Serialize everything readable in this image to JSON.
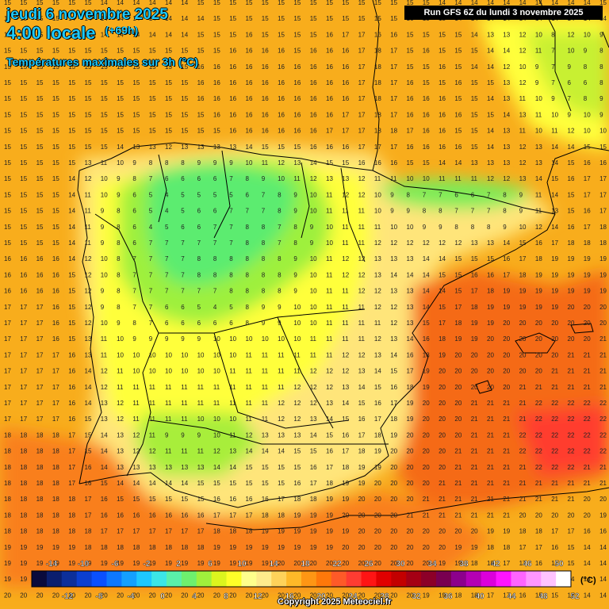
{
  "header": {
    "date": "jeudi 6 novembre 2025",
    "local_time": "4:00 locale",
    "lead_time": "(+69h)",
    "parameter": "Températures maximales sur 3h (°C)",
    "run": "Run GFS 6Z du lundi 3 novembre 2025"
  },
  "legend": {
    "unit": "(°C)",
    "top_labels": [
      "-14",
      "-10",
      "-6",
      "-2",
      "2",
      "6",
      "10",
      "14",
      "18",
      "22",
      "26",
      "30",
      "34",
      "38",
      "42",
      "46",
      "50"
    ],
    "bottom_labels": [
      "-12",
      "-8",
      "-4",
      "0",
      "4",
      "8",
      "12",
      "16",
      "20",
      "24",
      "28",
      "32",
      "36",
      "40",
      "44",
      "48",
      "52"
    ],
    "colors": [
      "#0a0a3c",
      "#0b1e6e",
      "#0d2f9a",
      "#0c3fd0",
      "#0a50ff",
      "#0d78ff",
      "#14a0ff",
      "#1ec8ff",
      "#3ce6e6",
      "#5af0aa",
      "#6ef06e",
      "#a0f03c",
      "#dcf51e",
      "#ffff28",
      "#ffff8c",
      "#ffeb8c",
      "#ffd25a",
      "#ffb928",
      "#ff9614",
      "#ff780a",
      "#ff5a28",
      "#ff3c32",
      "#ff1414",
      "#e10000",
      "#c30000",
      "#a50014",
      "#8c0028",
      "#780050",
      "#8c008c",
      "#b400b4",
      "#dc00dc",
      "#ff14ff",
      "#ff64ff",
      "#ff96ff",
      "#ffc3ff",
      "#ffffff"
    ]
  },
  "copyright": "Copyright 2025 Meteociel.fr",
  "grid_values": [
    "15 15 15 15 15 15 14 14 14 14 14 14 15 15 15 15 15 15 15 15 15 15 15 15 15 15 15 14 14 14 14 14 14 14 14 14 14 15",
    "15 15 15 15 14 14 14 14 14 14 14 14 14 15 15 15 15 15 15 15 15 15 15 15 15 16 15 15 14 14 14 14 14 14 14 14 14 14",
    "15 15 15 15 14 14 14 14 14 14 14 14 15 15 15 16 15 15 15 15 16 17 17 16 16 15 15 15 15 14 13 13 12 10 8 12 10 9",
    "15 15 15 15 15 15 15 15 15 15 15 15 15 15 16 16 16 16 15 16 16 16 17 18 17 15 16 15 15 15 14 14 12 11 7 10 9 8",
    "15 15 15 15 15 15 15 15 15 15 15 15 16 16 16 16 16 16 16 16 16 16 17 18 17 15 15 16 15 14 14 12 10 9 7 9 8 8",
    "15 15 15 15 15 15 15 15 15 15 15 15 16 16 16 16 16 16 16 16 16 16 17 18 17 16 15 15 16 15 15 13 12 9 7 6 6 8",
    "15 15 15 15 15 15 15 15 15 15 15 15 16 16 16 16 16 16 16 16 16 16 17 18 17 16 16 16 15 15 14 13 11 10 9 7 8 9",
    "15 15 15 15 15 15 15 15 15 15 15 15 15 16 16 16 16 16 16 16 16 17 17 18 17 16 16 16 16 15 15 14 13 11 10 9 10 9",
    "15 15 15 15 15 15 15 15 15 15 15 15 15 15 16 16 16 16 16 16 17 17 17 18 18 17 16 16 15 15 14 13 11 10 11 12 10 10",
    "15 15 15 15 15 15 15 14 13 13 12 13 13 13 13 14 15 15 15 16 16 16 17 17 17 16 16 16 16 15 14 13 12 13 14 14 15 15",
    "15 15 15 15 15 13 11 10 9 8 8 8 9 9 9 10 11 12 13 14 15 15 16 16 16 15 15 14 14 13 13 13 12 13 14 15 16 16",
    "15 15 15 15 14 12 10 9 8 7 6 6 6 6 7 8 9 10 11 12 13 13 12 11 11 10 10 11 11 11 12 12 13 14 15 16 17 17",
    "15 15 15 15 14 11 10 9 6 5 4 5 5 5 5 6 7 8 9 10 11 12 12 10 9 8 7 7 6 6 7 8 9 11 14 15 17 17",
    "15 15 15 15 14 11 9 8 6 5 4 5 6 6 7 7 7 8 9 10 11 11 11 10 9 9 8 8 7 7 7 8 9 11 13 15 16 17",
    "15 15 15 15 14 11 9 8 6 4 5 6 6 7 7 8 8 7 8 9 10 11 11 11 10 10 9 9 8 8 8 9 10 12 14 16 17 18",
    "15 15 15 15 14 11 9 8 6 7 7 7 7 7 7 8 8 7 8 9 10 11 11 12 12 12 12 12 12 13 13 14 15 16 17 18 18 18",
    "16 16 16 16 14 12 10 8 7 7 7 7 8 8 8 8 8 8 9 10 11 12 12 13 13 13 14 14 15 15 15 16 17 18 19 19 19 19",
    "16 16 16 16 15 12 10 8 7 7 7 7 8 8 8 8 8 8 9 10 11 12 12 13 14 14 14 15 15 16 16 17 18 19 19 19 19 19",
    "16 16 16 16 15 12 9 8 7 7 7 7 7 7 8 8 8 8 9 10 11 11 12 12 13 13 14 14 15 17 18 19 19 19 19 19 19 19",
    "17 17 17 16 15 12 9 8 7 7 6 6 5 4 5 8 9 9 10 10 11 11 11 12 12 13 14 15 17 18 19 19 19 19 19 20 20 20",
    "17 17 17 16 15 12 10 9 8 7 6 6 6 6 6 8 9 9 10 10 11 11 11 11 12 13 15 17 18 19 19 20 20 20 20 20 20 20",
    "17 17 17 16 15 13 11 10 9 9 9 9 9 10 10 10 10 10 10 11 11 11 11 12 13 14 16 18 19 19 20 20 20 20 20 20 20 21",
    "17 17 17 17 16 13 11 10 10 10 10 10 10 10 10 11 11 11 11 11 11 12 12 13 14 16 18 19 20 20 20 20 20 20 20 21 21 21",
    "17 17 17 17 16 14 12 11 10 10 10 10 10 10 11 11 11 11 11 12 12 12 13 14 15 17 19 20 20 20 20 20 20 20 21 21 21 21",
    "17 17 17 17 16 14 12 11 11 11 11 11 11 11 11 11 11 11 12 12 12 13 14 15 16 18 19 20 20 20 20 20 21 21 21 21 21 21",
    "17 17 17 17 16 14 13 12 11 11 11 11 11 11 11 11 11 12 12 12 13 14 15 16 17 19 20 20 20 21 21 21 21 22 22 22 22 22",
    "17 17 17 17 16 15 13 12 11 11 11 11 10 10 10 11 11 12 12 13 14 15 16 17 18 19 20 20 20 21 21 21 21 22 22 22 22 22",
    "18 18 18 18 17 15 14 13 12 11 9 9 9 10 11 12 13 13 13 14 15 16 17 18 19 20 20 20 20 21 21 21 22 22 22 22 22 22",
    "18 18 18 18 17 15 14 13 12 12 11 11 11 12 13 14 14 14 15 15 16 17 18 19 20 20 20 20 21 21 21 21 22 22 22 22 22 22",
    "18 18 18 18 17 16 14 13 13 13 13 13 13 14 14 15 15 15 15 16 17 18 19 19 20 20 20 20 21 21 21 21 21 22 22 22 21 21",
    "18 18 18 18 17 16 15 14 14 14 14 14 15 15 15 15 15 15 16 17 18 19 19 20 20 20 20 21 21 21 21 21 21 21 21 21 21 21",
    "18 18 18 18 18 17 16 15 15 15 15 15 15 16 16 16 16 17 18 18 19 19 20 20 20 20 21 21 21 21 21 21 21 21 21 21 20 20",
    "18 18 18 18 18 17 16 16 16 16 16 16 16 17 17 17 18 18 19 19 19 20 20 20 20 21 21 21 21 21 21 21 20 20 20 20 20 19",
    "18 18 18 18 18 18 17 17 17 17 17 17 17 18 18 18 19 19 19 19 19 19 20 20 20 20 20 20 20 20 19 19 18 18 17 17 16 16",
    "19 19 19 19 19 18 18 18 18 18 18 18 18 19 19 19 19 19 19 19 19 20 20 20 20 20 20 20 19 19 18 18 17 17 16 15 14 14",
    "19 19 19 19 19 19 19 19 19 19 19 19 19 19 19 19 19 20 20 20 20 20 20 20 20 20 20 19 19 18 18 17 17 16 15 15 14 14",
    "19 19 19 19 19 19 19 19 19 19 19 19 20 20 20 20 20 20 20 20 20 20 20 20 20 20 19 19 18 18 17 17 16 16 15 14 14 14",
    "20 20 20 20 20 20 20 20 20 20 20 20 20 20 20 20 20 20 20 20 20 20 20 20 20 20 19 19 18 18 17 17 16 15 15 14 14 14"
  ]
}
